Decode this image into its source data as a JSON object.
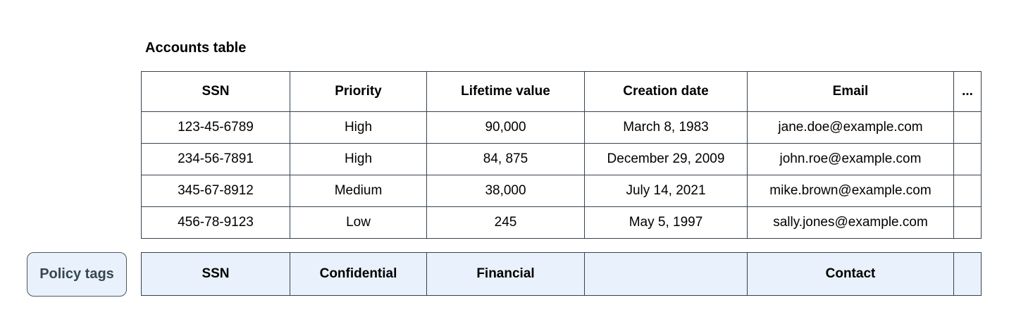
{
  "title": "Accounts table",
  "colors": {
    "table_border": "#37424e",
    "policy_tag_fill": "#e9f1fc",
    "policy_button_fill": "#e9f1fc",
    "policy_button_border": "#4d5760",
    "policy_button_text": "#37474f"
  },
  "accounts_table": {
    "columns": [
      "SSN",
      "Priority",
      "Lifetime value",
      "Creation date",
      "Email",
      "..."
    ],
    "rows": [
      [
        "123-45-6789",
        "High",
        "90,000",
        "March 8, 1983",
        "jane.doe@example.com",
        ""
      ],
      [
        "234-56-7891",
        "High",
        "84, 875",
        "December 29, 2009",
        "john.roe@example.com",
        ""
      ],
      [
        "345-67-8912",
        "Medium",
        "38,000",
        "July 14, 2021",
        "mike.brown@example.com",
        ""
      ],
      [
        "456-78-9123",
        "Low",
        "245",
        "May 5, 1997",
        "sally.jones@example.com",
        ""
      ]
    ]
  },
  "policy_tags": {
    "label": "Policy tags",
    "tags": [
      "SSN",
      "Confidential",
      "Financial",
      "",
      "Contact",
      ""
    ]
  }
}
